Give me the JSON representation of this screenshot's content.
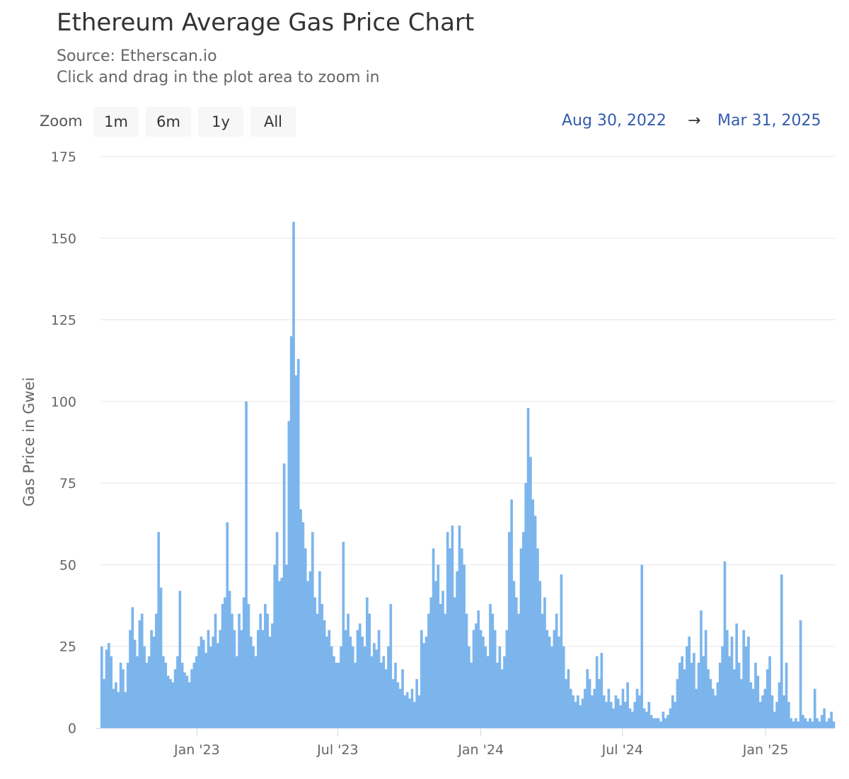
{
  "chart_data": {
    "type": "bar",
    "title": "Ethereum Average Gas Price Chart",
    "subtitle": [
      "Source: Etherscan.io",
      "Click and drag in the plot area to zoom in"
    ],
    "zoom": {
      "label": "Zoom",
      "buttons": [
        "1m",
        "6m",
        "1y",
        "All"
      ]
    },
    "range": {
      "from": "Aug 30, 2022",
      "arrow": "→",
      "to": "Mar 31, 2025"
    },
    "y_label": "Gas Price in Gwei",
    "color": "#7cb5ec",
    "grid": true,
    "ylim": [
      0,
      175
    ],
    "yticks": [
      0,
      25,
      50,
      75,
      100,
      125,
      150,
      175
    ],
    "xticks": [
      {
        "value": "2023-01",
        "label": "Jan '23"
      },
      {
        "value": "2023-07",
        "label": "Jul '23"
      },
      {
        "value": "2024-01",
        "label": "Jan '24"
      },
      {
        "value": "2024-07",
        "label": "Jul '24"
      },
      {
        "value": "2025-01",
        "label": "Jan '25"
      }
    ],
    "values": [
      25,
      15,
      24,
      26,
      22,
      12,
      14,
      11,
      20,
      18,
      11,
      20,
      30,
      37,
      27,
      22,
      33,
      35,
      25,
      20,
      22,
      30,
      28,
      35,
      60,
      43,
      22,
      20,
      16,
      15,
      14,
      18,
      22,
      42,
      20,
      17,
      16,
      14,
      18,
      20,
      22,
      25,
      28,
      27,
      23,
      30,
      25,
      28,
      35,
      26,
      30,
      38,
      40,
      63,
      42,
      35,
      30,
      22,
      35,
      30,
      40,
      100,
      38,
      28,
      25,
      22,
      30,
      35,
      30,
      38,
      35,
      28,
      32,
      50,
      60,
      45,
      46,
      81,
      50,
      94,
      120,
      155,
      108,
      113,
      67,
      63,
      55,
      45,
      48,
      60,
      40,
      35,
      48,
      38,
      33,
      28,
      30,
      25,
      22,
      20,
      20,
      25,
      57,
      30,
      35,
      28,
      25,
      20,
      30,
      32,
      28,
      25,
      40,
      35,
      22,
      26,
      24,
      30,
      20,
      22,
      18,
      25,
      38,
      15,
      20,
      14,
      12,
      18,
      10,
      11,
      9,
      12,
      8,
      15,
      10,
      30,
      26,
      28,
      35,
      40,
      55,
      45,
      50,
      38,
      42,
      35,
      60,
      55,
      62,
      40,
      48,
      62,
      55,
      50,
      35,
      25,
      20,
      30,
      32,
      36,
      30,
      28,
      25,
      22,
      38,
      35,
      30,
      20,
      25,
      18,
      22,
      30,
      60,
      70,
      45,
      40,
      35,
      55,
      60,
      75,
      98,
      83,
      70,
      65,
      55,
      45,
      35,
      40,
      30,
      28,
      25,
      30,
      35,
      28,
      47,
      25,
      15,
      18,
      12,
      10,
      8,
      10,
      7,
      9,
      12,
      18,
      15,
      10,
      12,
      22,
      15,
      23,
      10,
      8,
      12,
      8,
      6,
      10,
      9,
      7,
      12,
      8,
      14,
      6,
      5,
      8,
      12,
      10,
      50,
      6,
      5,
      8,
      4,
      3,
      3,
      3,
      2,
      5,
      3,
      4,
      6,
      10,
      8,
      15,
      20,
      22,
      18,
      25,
      28,
      20,
      23,
      12,
      20,
      36,
      22,
      30,
      18,
      15,
      12,
      10,
      14,
      20,
      25,
      51,
      30,
      22,
      28,
      18,
      32,
      20,
      15,
      30,
      25,
      28,
      14,
      12,
      20,
      16,
      8,
      10,
      12,
      18,
      22,
      10,
      5,
      8,
      14,
      47,
      10,
      20,
      8,
      3,
      2,
      3,
      2,
      33,
      4,
      3,
      2,
      3,
      2,
      12,
      3,
      2,
      4,
      6,
      2,
      3,
      5,
      2
    ]
  }
}
